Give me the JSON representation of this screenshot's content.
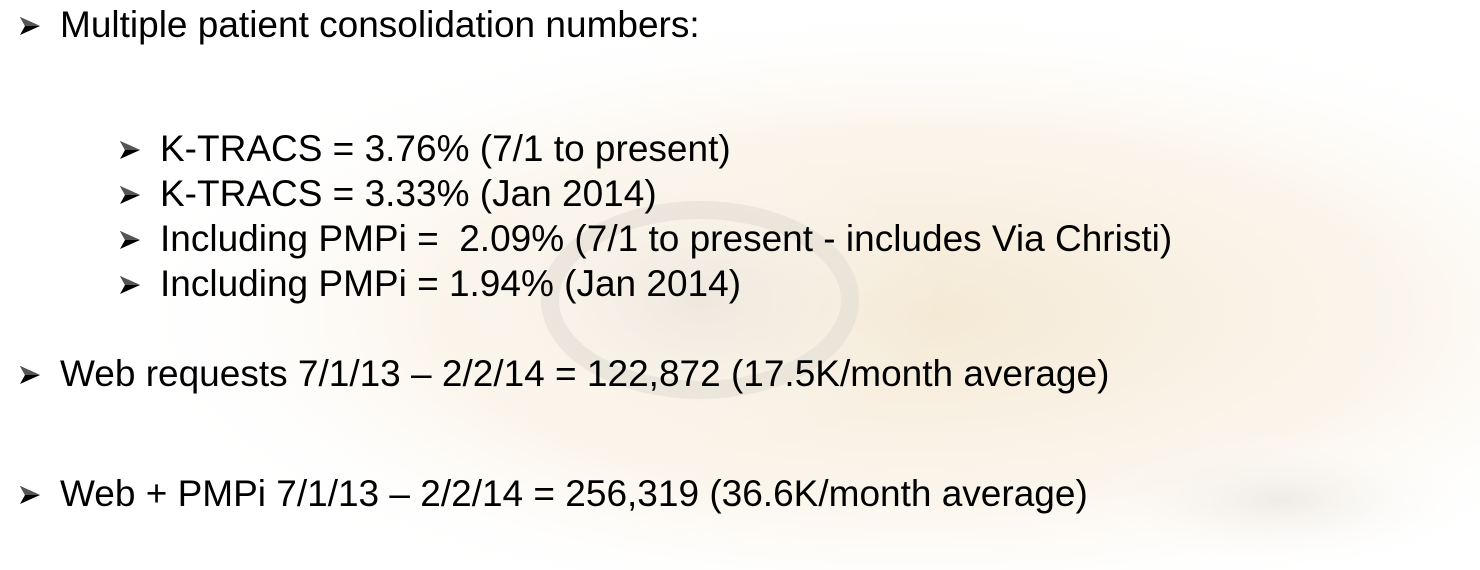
{
  "items": [
    {
      "text": "Multiple patient consolidation numbers:",
      "subitems": [
        "K-TRACS = 3.76% (7/1 to present)",
        "K-TRACS = 3.33% (Jan 2014)",
        "Including PMPi =  2.09% (7/1 to present - includes Via Christi)",
        "Including PMPi = 1.94% (Jan 2014)"
      ]
    },
    {
      "text": "Web requests 7/1/13 – 2/2/14 = 122,872 (17.5K/month average)"
    },
    {
      "text": "Web + PMPi 7/1/13 – 2/2/14 = 256,319 (36.6K/month average)"
    }
  ]
}
